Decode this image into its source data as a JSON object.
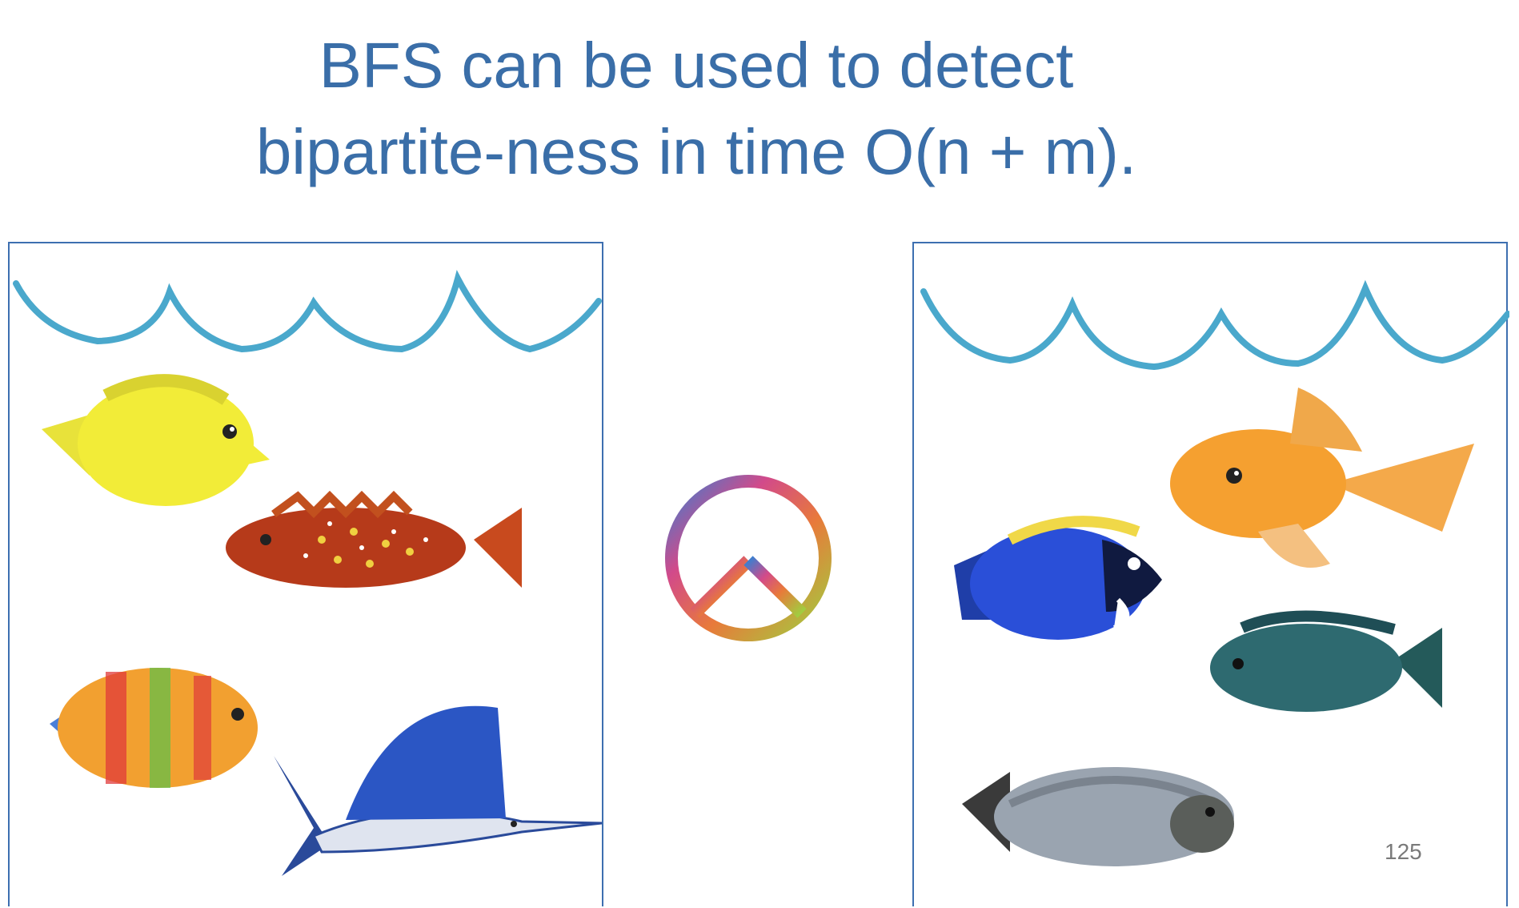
{
  "slide": {
    "title_lines": [
      "BFS can be used to detect",
      "bipartite-ness in time O(n + m)."
    ],
    "page_number": "125"
  },
  "colors": {
    "title": "#3a6ea8",
    "tank_border": "#3d6fb0",
    "water": "#4aa8cc"
  },
  "icons": {
    "center": "peace-sign-icon"
  },
  "left_tank": {
    "fish": [
      "yellow-tang-fish",
      "red-grouper-fish",
      "rainbow-fish",
      "sailfish"
    ]
  },
  "right_tank": {
    "fish": [
      "goldfish",
      "blue-tang-fish",
      "tilapia-fish",
      "carp-fish"
    ]
  }
}
